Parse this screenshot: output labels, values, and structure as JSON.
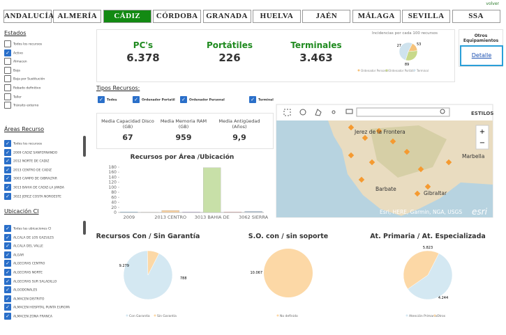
{
  "header": {
    "back": "volver"
  },
  "tabs": [
    "ANDALUCÍA",
    "ALMERÍA",
    "CÁDIZ",
    "CÓRDOBA",
    "GRANADA",
    "HUELVA",
    "JAÉN",
    "MÁLAGA",
    "SEVILLA",
    "SSA"
  ],
  "active_tab": 2,
  "sidebar": [
    {
      "title": "Estados",
      "items": [
        {
          "label": "Todos los recursos",
          "checked": false
        },
        {
          "label": "Activo",
          "checked": true
        },
        {
          "label": "Almacen",
          "checked": false
        },
        {
          "label": "Baja",
          "checked": false
        },
        {
          "label": "Baja por Sustitución",
          "checked": false
        },
        {
          "label": "Robado definitivo",
          "checked": false
        },
        {
          "label": "Taller",
          "checked": false
        },
        {
          "label": "Tránsito externo",
          "checked": false
        }
      ]
    },
    {
      "title": "Áreas Recurso",
      "items": [
        {
          "label": "Todos los recursos",
          "checked": true
        },
        {
          "label": "2009 CADIZ SANFERNANDO",
          "checked": true
        },
        {
          "label": "2012 NORTE DE CADIZ",
          "checked": true
        },
        {
          "label": "2013 CENTRO DE CADIZ",
          "checked": true
        },
        {
          "label": "3003 CAMPO DE GIBRALTAR",
          "checked": true
        },
        {
          "label": "3013 BAHIA DE CADIZ-LA JANDA",
          "checked": true
        },
        {
          "label": "3022 JEREZ COSTA NOROESTE",
          "checked": true
        }
      ]
    },
    {
      "title": "Ubicación CI",
      "items": [
        {
          "label": "Todas las ubicaciones CI",
          "checked": true
        },
        {
          "label": "ALCALA DE LOS GAZULES",
          "checked": true
        },
        {
          "label": "ALCALA DEL VALLE",
          "checked": true
        },
        {
          "label": "ALGAR",
          "checked": true
        },
        {
          "label": "ALGECIRAS CENTRO",
          "checked": true
        },
        {
          "label": "ALGECIRAS NORTE",
          "checked": true
        },
        {
          "label": "ALGECIRAS SUR SALADILLO",
          "checked": true
        },
        {
          "label": "ALGODONALES",
          "checked": true
        },
        {
          "label": "ALMACEN DISTRITO",
          "checked": true
        },
        {
          "label": "ALMACEN HOSPITAL PUNTA EUROPA",
          "checked": true
        },
        {
          "label": "ALMACEN ZONA FRANCA",
          "checked": true
        }
      ]
    }
  ],
  "kpis": [
    {
      "label": "PC's",
      "value": "6.378"
    },
    {
      "label": "Portátiles",
      "value": "226"
    },
    {
      "label": "Terminales",
      "value": "3.463"
    }
  ],
  "incidencias": {
    "type": "pie",
    "title": "Incidencias por cada 100 recursos",
    "values": [
      27,
      53,
      89
    ],
    "categories": [
      "Ordenador Personal",
      "Ordenador Portátil",
      "Terminal"
    ],
    "colors": [
      "#f5c27a",
      "#c8d98a",
      "#cfe3ee"
    ]
  },
  "otros": {
    "title": "Otros Equipamientos",
    "link": "Detalle"
  },
  "tipos": {
    "title": "Tipos Recursos:",
    "items": [
      {
        "label": "Todos",
        "checked": true
      },
      {
        "label": "Ordenador Portatil",
        "checked": true
      },
      {
        "label": "Ordenador Personal",
        "checked": true
      },
      {
        "label": "Terminal",
        "checked": true
      }
    ]
  },
  "medias": [
    {
      "label": "Media Capacidad Disco (GB)",
      "value": "67"
    },
    {
      "label": "Media Memoria RAM (GB)",
      "value": "959"
    },
    {
      "label": "Media Antigüedad (Años)",
      "value": "9,9"
    }
  ],
  "bar_chart": {
    "type": "bar",
    "title": "Recursos por Área /Ubicación",
    "categories": [
      "2009",
      null,
      "2013 CENTRO",
      null,
      "3013 BAHIA DE",
      null,
      "3062 SIERRA"
    ],
    "values": [
      2,
      1,
      8,
      2,
      178,
      2,
      5
    ],
    "colors": [
      "#7fb3d5",
      "#f5c27a",
      "#f5cfa0",
      "#b0a0d0",
      "#c8e0a8",
      "#e8a0a0",
      "#b8c8d8"
    ],
    "ylim": [
      0,
      180
    ],
    "yticks": [
      0,
      20,
      40,
      60,
      80,
      100,
      120,
      140,
      160,
      180
    ]
  },
  "map": {
    "styles": "ESTILOS",
    "places": [
      "Jerez de la Frontera",
      "Marbella",
      "Barbate",
      "Gibraltar"
    ],
    "attribution": "Esri, HERE, Garmin, NGA, USGS",
    "logo": "esri"
  },
  "pies": [
    {
      "type": "pie",
      "title": "Recursos Con / Sin Garantía",
      "values": [
        9279,
        788
      ],
      "value_labels": [
        "9.279",
        "788"
      ],
      "categories": [
        "Con Garantía",
        "Sin Garantía"
      ],
      "colors": [
        "#d4e8f2",
        "#fcd8a6"
      ]
    },
    {
      "type": "pie",
      "title": "S.O. con / sin soporte",
      "values": [
        10067
      ],
      "value_labels": [
        "10.067"
      ],
      "categories": [
        "No definido"
      ],
      "colors": [
        "#fcd8a6"
      ]
    },
    {
      "type": "pie",
      "title": "At. Primaria / At. Especializada",
      "values": [
        5823,
        4244
      ],
      "value_labels": [
        "5.823",
        "4.244"
      ],
      "categories": [
        "Atención Primaria",
        "Otros"
      ],
      "colors": [
        "#d4e8f2",
        "#fcd8a6"
      ]
    }
  ]
}
